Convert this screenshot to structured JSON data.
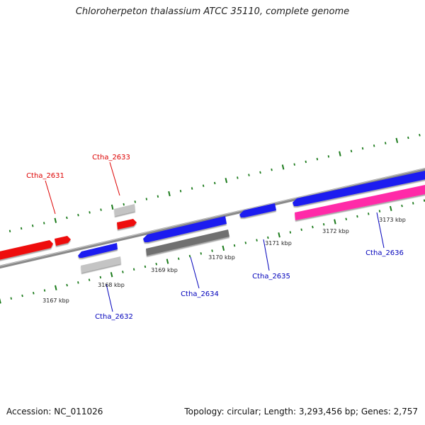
{
  "title": "Chloroherpeton thalassium ATCC 35110, complete genome",
  "footer": {
    "accession": "Accession: NC_011026",
    "summary": "Topology: circular; Length: 3,293,456 bp; Genes: 2,757"
  },
  "colors": {
    "backbone": "#8a8a8a",
    "tick": "#1a7a1a",
    "cds_forward": "#ee1111",
    "cds_reverse": "#1a1af0",
    "pseudo_light": "#c4c4c4",
    "pseudo_dark": "#707070",
    "rna_pink": "#ff2aa8",
    "label_forward": "#dd0000",
    "label_reverse": "#0000bb"
  },
  "scale_labels": [
    "3167 kbp",
    "3168 kbp",
    "3169 kbp",
    "3170 kbp",
    "3171 kbp",
    "3172 kbp",
    "3173 kbp"
  ],
  "genes": {
    "ctha_2631": "Ctha_2631",
    "ctha_2632": "Ctha_2632",
    "ctha_2633": "Ctha_2633",
    "ctha_2634": "Ctha_2634",
    "ctha_2635": "Ctha_2635",
    "ctha_2636": "Ctha_2636"
  }
}
